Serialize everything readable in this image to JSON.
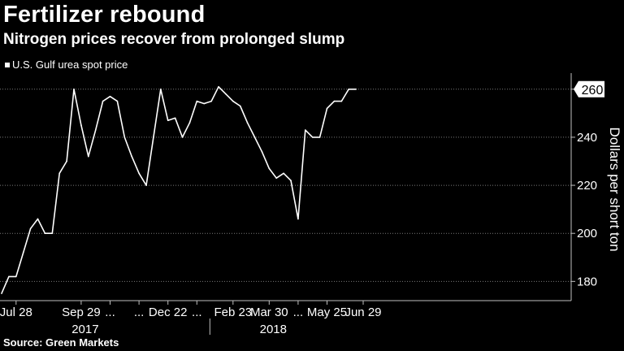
{
  "chart_data": {
    "type": "line",
    "title": "Fertilizer rebound",
    "subtitle": "Nitrogen prices recover from prolonged slump",
    "legend": [
      "U.S. Gulf urea spot price"
    ],
    "ylabel": "Dollars per short ton",
    "xlabel": "",
    "ylim": [
      172,
      265
    ],
    "yticks": [
      180,
      200,
      220,
      240,
      260
    ],
    "grid": true,
    "last_value_label": "260",
    "x_tick_labels": [
      "Jul 28",
      "Sep 29",
      "...",
      "...",
      "Dec 22",
      "...",
      "Feb 23",
      "Mar 30",
      "...",
      "May 25",
      "Jun 29"
    ],
    "x_tick_index": [
      2,
      11,
      15,
      19,
      23,
      27,
      32,
      37,
      41,
      45,
      50
    ],
    "year_labels": [
      "2017",
      "2018"
    ],
    "year_label_index": [
      11,
      37
    ],
    "series": [
      {
        "name": "U.S. Gulf urea spot price",
        "values": [
          175,
          182,
          182,
          192,
          202,
          206,
          200,
          200,
          225,
          230,
          260,
          245,
          232,
          243,
          255,
          257,
          255,
          240,
          232,
          225,
          220,
          240,
          260,
          247,
          248,
          240,
          246,
          255,
          254,
          255,
          261,
          258,
          255,
          253,
          246,
          240,
          234,
          227,
          223,
          225,
          222,
          206,
          243,
          240,
          240,
          252,
          255,
          255,
          260,
          260
        ]
      }
    ]
  },
  "source": "Source: Green Markets"
}
